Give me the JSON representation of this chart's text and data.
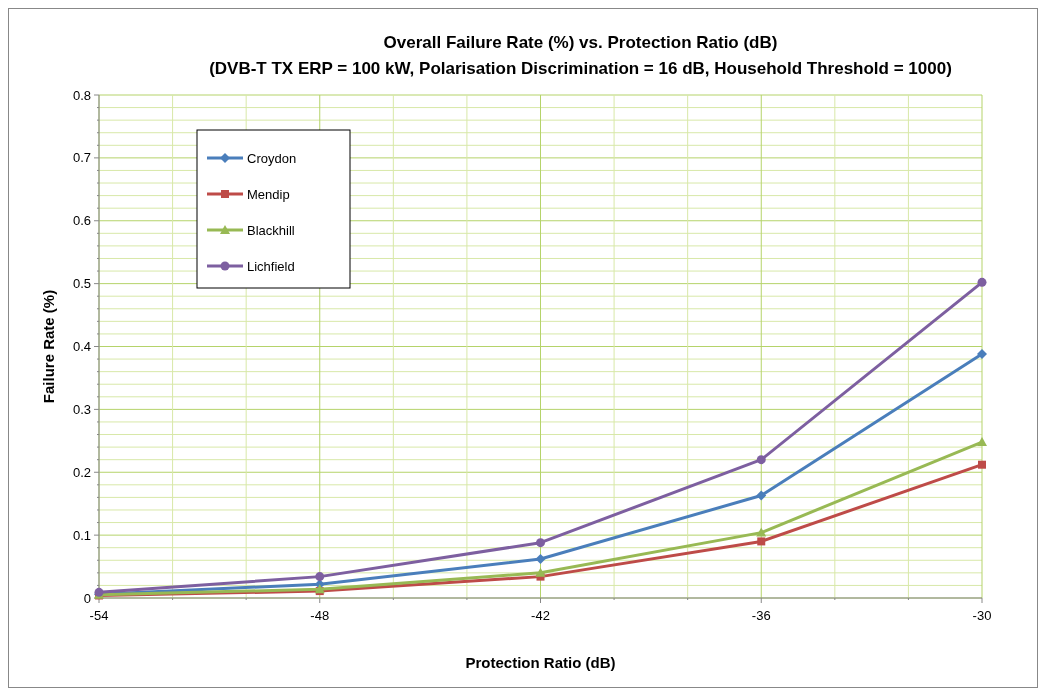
{
  "chart_data": {
    "type": "line",
    "title": "Overall Failure Rate (%) vs. Protection Ratio (dB)",
    "subtitle": "(DVB-T TX ERP = 100 kW, Polarisation Discrimination = 16 dB, Household Threshold = 1000)",
    "xlabel": "Protection Ratio (dB)",
    "ylabel": "Failure Rate (%)",
    "x": [
      -54,
      -48,
      -42,
      -36,
      -30
    ],
    "series": [
      {
        "name": "Croydon",
        "color": "#4a7ebb",
        "marker": "diamond",
        "values": [
          0.006,
          0.022,
          0.062,
          0.163,
          0.388
        ]
      },
      {
        "name": "Mendip",
        "color": "#be4b48",
        "marker": "square",
        "values": [
          0.004,
          0.011,
          0.034,
          0.09,
          0.212
        ]
      },
      {
        "name": "Blackhill",
        "color": "#98b954",
        "marker": "triangle",
        "values": [
          0.005,
          0.014,
          0.04,
          0.104,
          0.248
        ]
      },
      {
        "name": "Lichfield",
        "color": "#7d5fa0",
        "marker": "circle",
        "values": [
          0.009,
          0.034,
          0.088,
          0.22,
          0.502
        ]
      }
    ],
    "xlim": [
      -54,
      -30
    ],
    "xticks": [
      -54,
      {
        "value": -52,
        "label": null
      },
      {
        "value": -50,
        "label": null
      },
      -48,
      {
        "value": -46,
        "label": null
      },
      {
        "value": -44,
        "label": null
      },
      -42,
      {
        "value": -40,
        "label": null
      },
      {
        "value": -38,
        "label": null
      },
      -36,
      {
        "value": -34,
        "label": null
      },
      {
        "value": -32,
        "label": null
      },
      -30
    ],
    "ylim": [
      0,
      0.8
    ],
    "yticks": [
      0,
      {
        "value": 0.02,
        "label": null
      },
      {
        "value": 0.04,
        "label": null
      },
      {
        "value": 0.06,
        "label": null
      },
      {
        "value": 0.08,
        "label": null
      },
      0.1,
      {
        "value": 0.12,
        "label": null
      },
      {
        "value": 0.14,
        "label": null
      },
      {
        "value": 0.16,
        "label": null
      },
      {
        "value": 0.18,
        "label": null
      },
      0.2,
      {
        "value": 0.22,
        "label": null
      },
      {
        "value": 0.24,
        "label": null
      },
      {
        "value": 0.26,
        "label": null
      },
      {
        "value": 0.28,
        "label": null
      },
      0.3,
      {
        "value": 0.32,
        "label": null
      },
      {
        "value": 0.34,
        "label": null
      },
      {
        "value": 0.36,
        "label": null
      },
      {
        "value": 0.38,
        "label": null
      },
      0.4,
      {
        "value": 0.42,
        "label": null
      },
      {
        "value": 0.44,
        "label": null
      },
      {
        "value": 0.46,
        "label": null
      },
      {
        "value": 0.48,
        "label": null
      },
      0.5,
      {
        "value": 0.52,
        "label": null
      },
      {
        "value": 0.54,
        "label": null
      },
      {
        "value": 0.56,
        "label": null
      },
      {
        "value": 0.58,
        "label": null
      },
      0.6,
      {
        "value": 0.62,
        "label": null
      },
      {
        "value": 0.64,
        "label": null
      },
      {
        "value": 0.66,
        "label": null
      },
      {
        "value": 0.68,
        "label": null
      },
      0.7,
      {
        "value": 0.72,
        "label": null
      },
      {
        "value": 0.74,
        "label": null
      },
      {
        "value": 0.76,
        "label": null
      },
      {
        "value": 0.78,
        "label": null
      },
      0.8
    ],
    "grid": true,
    "legend": "top left",
    "line_style": "solid"
  }
}
